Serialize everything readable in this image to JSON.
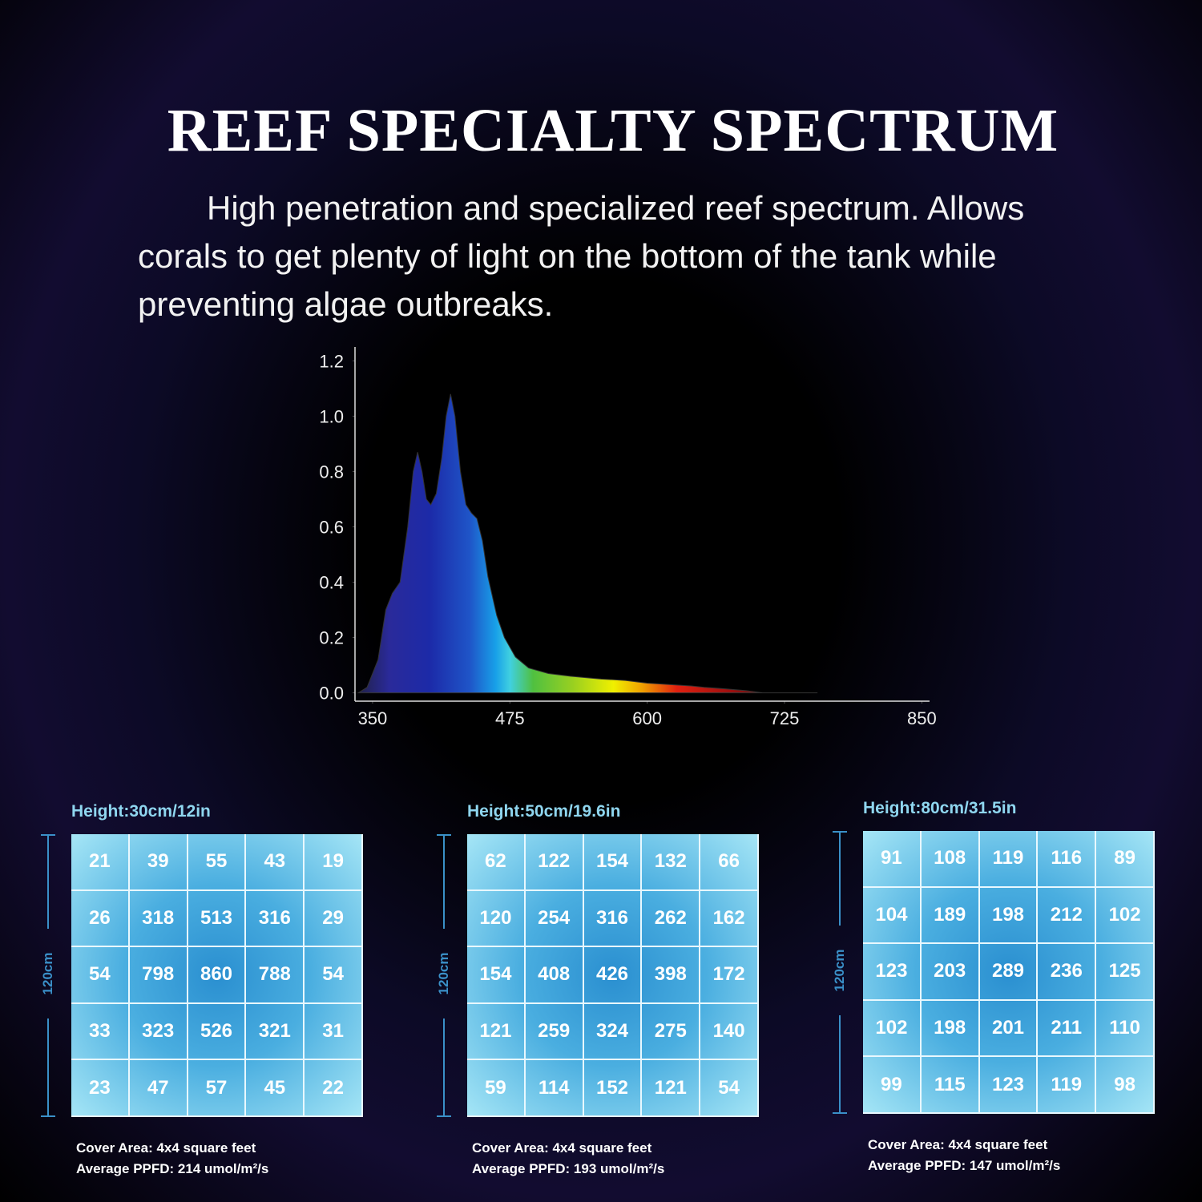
{
  "header": {
    "title": "REEF SPECIALTY SPECTRUM",
    "description": "High penetration and specialized reef spectrum. Allows corals to get plenty of light on the bottom of the tank while preventing algae outbreaks."
  },
  "chart_data": {
    "type": "area",
    "x": [
      337,
      345,
      355,
      362,
      368,
      375,
      382,
      387,
      391,
      395,
      399,
      403,
      408,
      413,
      417,
      421,
      425,
      430,
      435,
      440,
      445,
      450,
      455,
      463,
      470,
      480,
      492,
      510,
      530,
      558,
      580,
      600,
      620,
      640,
      652,
      670,
      690,
      705,
      730,
      755
    ],
    "values": [
      0,
      0.02,
      0.12,
      0.3,
      0.36,
      0.4,
      0.6,
      0.8,
      0.87,
      0.8,
      0.7,
      0.68,
      0.72,
      0.85,
      1.0,
      1.08,
      1.0,
      0.8,
      0.68,
      0.65,
      0.63,
      0.55,
      0.42,
      0.28,
      0.2,
      0.13,
      0.09,
      0.07,
      0.06,
      0.05,
      0.045,
      0.035,
      0.03,
      0.025,
      0.02,
      0.015,
      0.008,
      0,
      0,
      0
    ],
    "xlim": [
      334,
      857
    ],
    "ylim": [
      -0.03,
      1.25
    ],
    "xticks": [
      350,
      475,
      600,
      725,
      850
    ],
    "yticks": [
      {
        "value": 0,
        "label": "0.0"
      },
      0.2,
      0.4,
      0.6,
      0.8,
      {
        "value": 1,
        "label": "1.0"
      },
      1.2
    ]
  },
  "panels": [
    {
      "title": "Height:30cm/12in",
      "side_label": "120cm",
      "cells": [
        [
          "21",
          "39",
          "55",
          "43",
          "19"
        ],
        [
          "26",
          "318",
          "513",
          "316",
          "29"
        ],
        [
          "54",
          "798",
          "860",
          "788",
          "54"
        ],
        [
          "33",
          "323",
          "526",
          "321",
          "31"
        ],
        [
          "23",
          "47",
          "57",
          "45",
          "22"
        ]
      ],
      "cover": "Cover Area: 4x4 square feet",
      "average": "Average PPFD: 214 umol/m²/s"
    },
    {
      "title": "Height:50cm/19.6in",
      "side_label": "120cm",
      "cells": [
        [
          "62",
          "122",
          "154",
          "132",
          "66"
        ],
        [
          "120",
          "254",
          "316",
          "262",
          "162"
        ],
        [
          "154",
          "408",
          "426",
          "398",
          "172"
        ],
        [
          "121",
          "259",
          "324",
          "275",
          "140"
        ],
        [
          "59",
          "114",
          "152",
          "121",
          "54"
        ]
      ],
      "cover": "Cover Area: 4x4 square feet",
      "average": "Average PPFD: 193 umol/m²/s"
    },
    {
      "title": "Height:80cm/31.5in",
      "side_label": "120cm",
      "cells": [
        [
          "91",
          "108",
          "119",
          "116",
          "89"
        ],
        [
          "104",
          "189",
          "198",
          "212",
          "102"
        ],
        [
          "123",
          "203",
          "289",
          "236",
          "125"
        ],
        [
          "102",
          "198",
          "201",
          "211",
          "110"
        ],
        [
          "99",
          "115",
          "123",
          "119",
          "98"
        ]
      ],
      "cover": "Cover Area: 4x4 square feet",
      "average": "Average PPFD: 147 umol/m²/s"
    }
  ]
}
